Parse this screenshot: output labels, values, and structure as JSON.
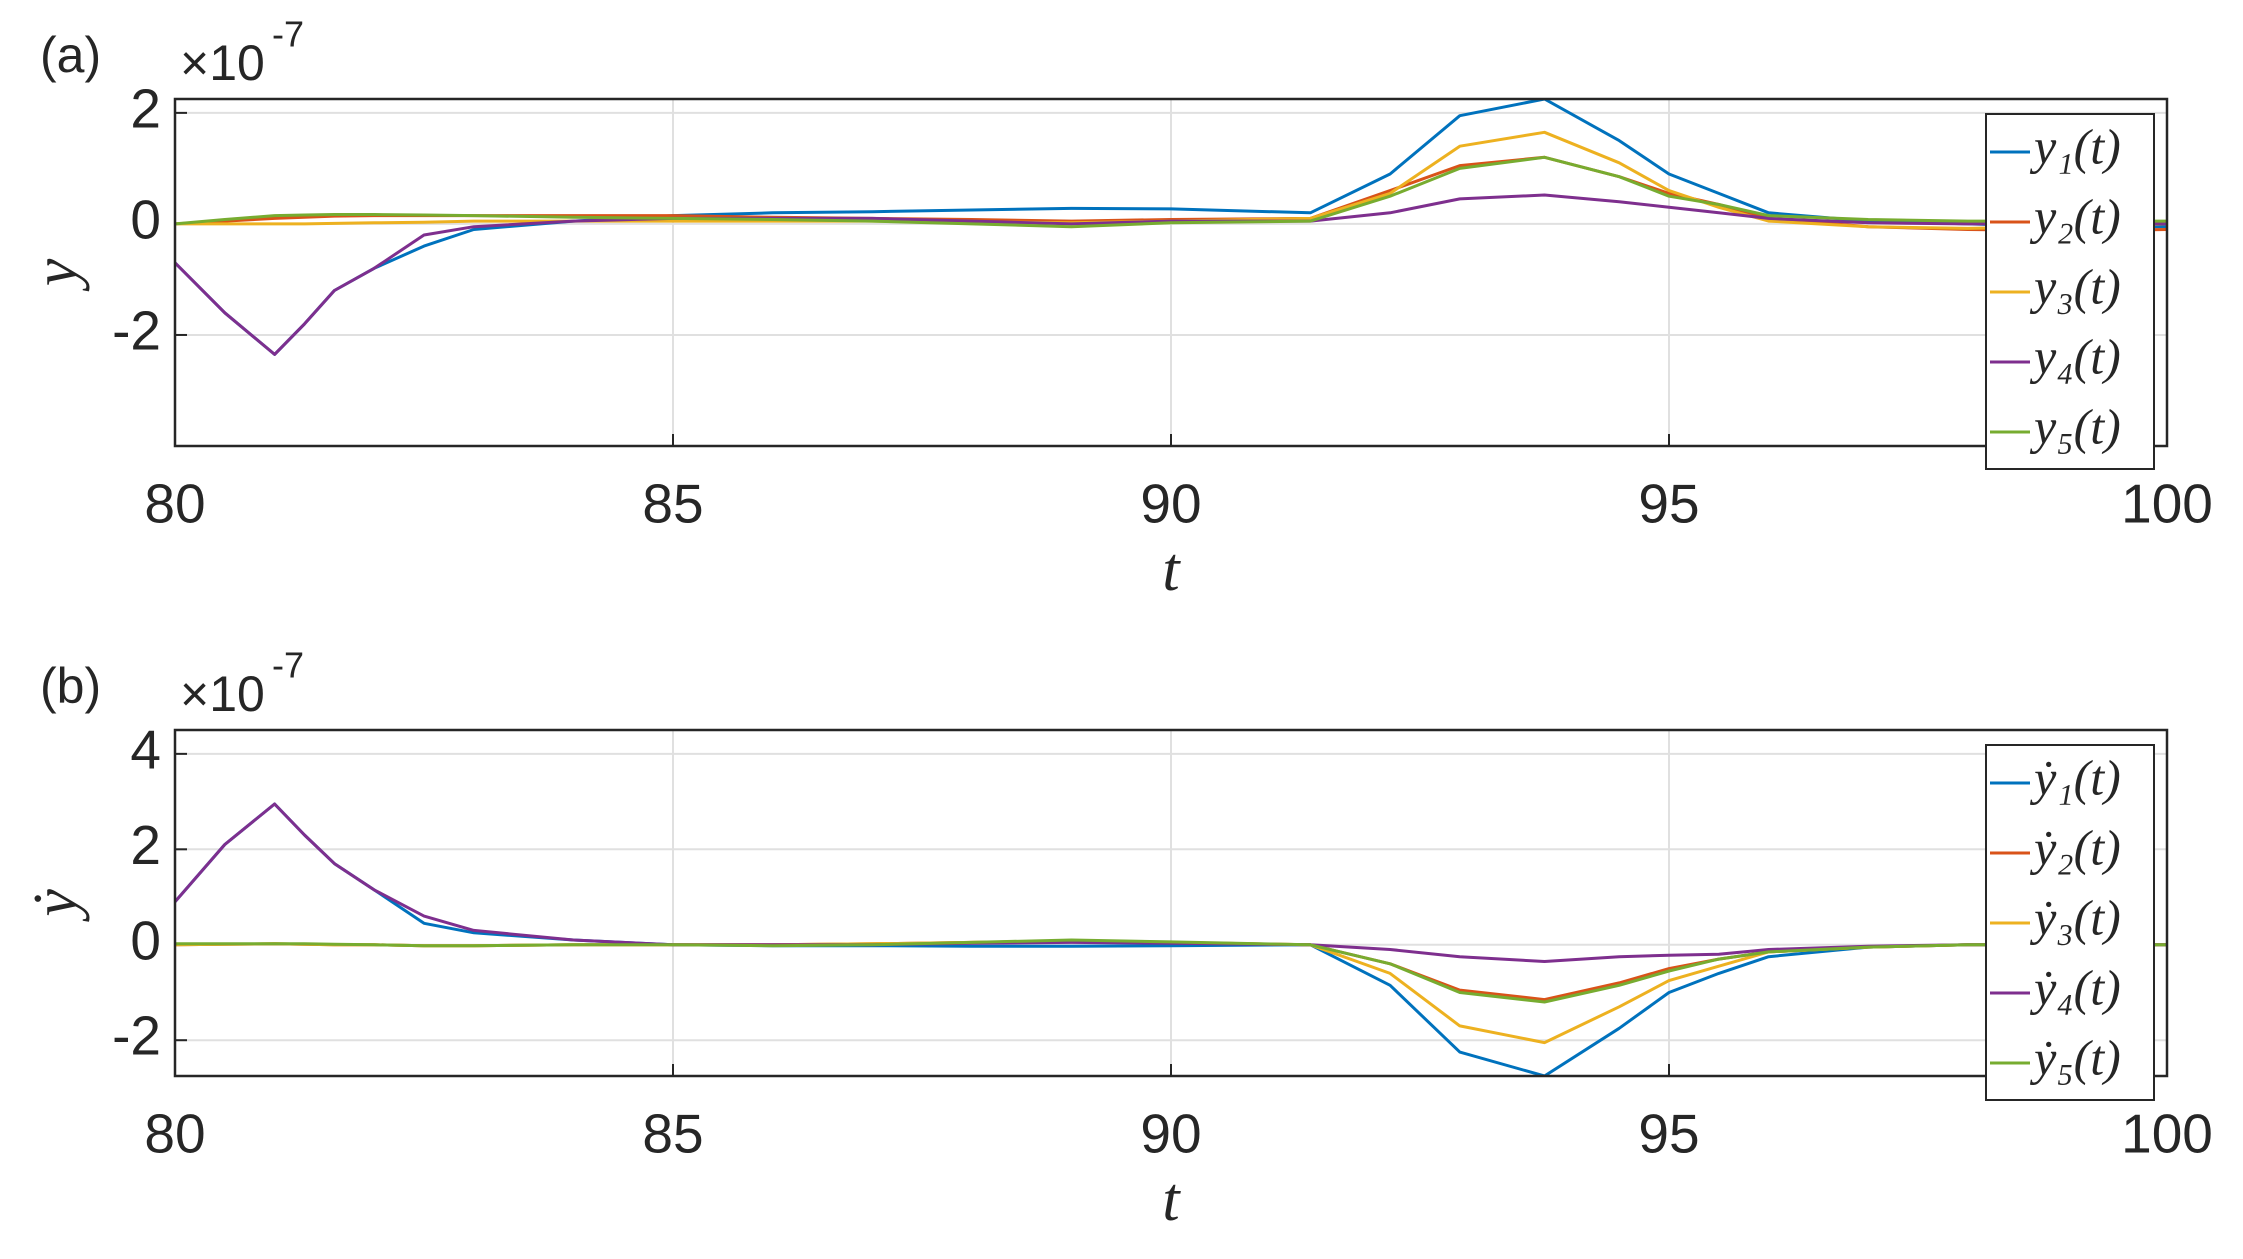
{
  "chart_data": [
    {
      "type": "line",
      "panel_label": "(a)",
      "y_scale_base": "×10",
      "y_scale_exponent": "-7",
      "xlabel": "t",
      "ylabel": "y",
      "x": [
        80,
        80.5,
        81,
        81.3,
        81.6,
        82,
        82.5,
        83,
        84,
        85,
        86,
        87,
        88,
        89,
        90,
        91.4,
        92.2,
        92.9,
        93.75,
        94.5,
        95,
        95.5,
        96,
        97,
        98,
        99,
        100
      ],
      "series": [
        {
          "name": "y₁(t)",
          "color": "#0072BD",
          "values": [
            -0.7,
            -1.6,
            -2.35,
            -1.8,
            -1.2,
            -0.8,
            -0.4,
            -0.1,
            0.05,
            0.15,
            0.2,
            0.22,
            0.25,
            0.28,
            0.27,
            0.2,
            0.9,
            1.95,
            2.25,
            1.5,
            0.9,
            0.55,
            0.2,
            0.05,
            0,
            -0.05,
            -0.05
          ]
        },
        {
          "name": "y₂(t)",
          "color": "#D95319",
          "values": [
            0,
            0.05,
            0.1,
            0.12,
            0.14,
            0.15,
            0.15,
            0.15,
            0.15,
            0.15,
            0.12,
            0.1,
            0.08,
            0.05,
            0.08,
            0.1,
            0.6,
            1.05,
            1.2,
            0.85,
            0.55,
            0.35,
            0.1,
            -0.05,
            -0.1,
            -0.12,
            -0.1
          ]
        },
        {
          "name": "y₃(t)",
          "color": "#EDB120",
          "values": [
            0,
            0,
            0,
            0,
            0.01,
            0.02,
            0.03,
            0.05,
            0.05,
            0.05,
            0.05,
            0.05,
            0.04,
            0.02,
            0.05,
            0.1,
            0.55,
            1.4,
            1.65,
            1.1,
            0.6,
            0.3,
            0.05,
            -0.05,
            -0.08,
            -0.05,
            0
          ]
        },
        {
          "name": "y₄(t)",
          "color": "#7E2F8E",
          "values": [
            -0.7,
            -1.6,
            -2.35,
            -1.8,
            -1.2,
            -0.8,
            -0.2,
            -0.05,
            0.05,
            0.1,
            0.1,
            0.1,
            0.05,
            0,
            0.05,
            0.05,
            0.2,
            0.45,
            0.52,
            0.4,
            0.3,
            0.2,
            0.1,
            0.02,
            0,
            0,
            0
          ]
        },
        {
          "name": "y₅(t)",
          "color": "#77AC30",
          "values": [
            0,
            0.08,
            0.15,
            0.16,
            0.17,
            0.17,
            0.16,
            0.15,
            0.12,
            0.1,
            0.08,
            0.05,
            0,
            -0.05,
            0.02,
            0.05,
            0.5,
            1.0,
            1.2,
            0.85,
            0.5,
            0.35,
            0.15,
            0.08,
            0.05,
            0.05,
            0.05
          ]
        }
      ],
      "xlim": [
        80,
        100
      ],
      "xticks": [
        80,
        85,
        90,
        95,
        100
      ],
      "ylim": [
        -4,
        2.25
      ],
      "yticks": [
        -2,
        0,
        2
      ],
      "grid": true,
      "legend": "northeast"
    },
    {
      "type": "line",
      "panel_label": "(b)",
      "y_scale_base": "×10",
      "y_scale_exponent": "-7",
      "xlabel": "t",
      "ylabel": "ẏ",
      "x": [
        80,
        80.5,
        81,
        81.3,
        81.6,
        82,
        82.5,
        83,
        84,
        85,
        86,
        87,
        88,
        89,
        90,
        91.4,
        92.2,
        92.9,
        93.75,
        94.5,
        95,
        95.5,
        96,
        97,
        98,
        99,
        100
      ],
      "series": [
        {
          "name": "ẏ₁(t)",
          "color": "#0072BD",
          "values": [
            0.9,
            2.1,
            2.95,
            2.3,
            1.7,
            1.15,
            0.45,
            0.25,
            0.1,
            0,
            -0.02,
            -0.02,
            -0.03,
            -0.03,
            -0.02,
            0,
            -0.85,
            -2.25,
            -2.75,
            -1.75,
            -1.0,
            -0.6,
            -0.25,
            -0.05,
            0,
            0,
            0
          ]
        },
        {
          "name": "ẏ₂(t)",
          "color": "#D95319",
          "values": [
            0,
            0.01,
            0.02,
            0.01,
            0,
            0,
            -0.02,
            -0.02,
            0,
            0,
            0,
            0.02,
            0.05,
            0.08,
            0.05,
            0,
            -0.4,
            -0.95,
            -1.15,
            -0.8,
            -0.5,
            -0.3,
            -0.15,
            -0.05,
            0,
            0,
            0
          ]
        },
        {
          "name": "ẏ₃(t)",
          "color": "#EDB120",
          "values": [
            0,
            0.01,
            0.02,
            0.01,
            0,
            0,
            -0.02,
            -0.02,
            0,
            0,
            0,
            0.02,
            0.05,
            0.08,
            0.05,
            0,
            -0.6,
            -1.7,
            -2.05,
            -1.3,
            -0.75,
            -0.45,
            -0.15,
            -0.05,
            0,
            0,
            0
          ]
        },
        {
          "name": "ẏ₄(t)",
          "color": "#7E2F8E",
          "values": [
            0.9,
            2.1,
            2.95,
            2.3,
            1.7,
            1.15,
            0.6,
            0.3,
            0.1,
            0,
            0,
            0,
            0.03,
            0.05,
            0.03,
            0,
            -0.1,
            -0.25,
            -0.35,
            -0.25,
            -0.22,
            -0.2,
            -0.1,
            -0.03,
            0,
            0,
            0
          ]
        },
        {
          "name": "ẏ₅(t)",
          "color": "#77AC30",
          "values": [
            0.02,
            0.02,
            0.02,
            0.02,
            0.01,
            0,
            -0.02,
            -0.02,
            0,
            0,
            -0.02,
            0,
            0.05,
            0.1,
            0.06,
            0,
            -0.4,
            -1.0,
            -1.2,
            -0.85,
            -0.55,
            -0.3,
            -0.15,
            -0.05,
            0,
            0,
            0
          ]
        }
      ],
      "xlim": [
        80,
        100
      ],
      "xticks": [
        80,
        85,
        90,
        95,
        100
      ],
      "ylim": [
        -2.75,
        4.5
      ],
      "yticks": [
        -2,
        0,
        2,
        4
      ],
      "grid": true,
      "legend": "northeast"
    }
  ]
}
